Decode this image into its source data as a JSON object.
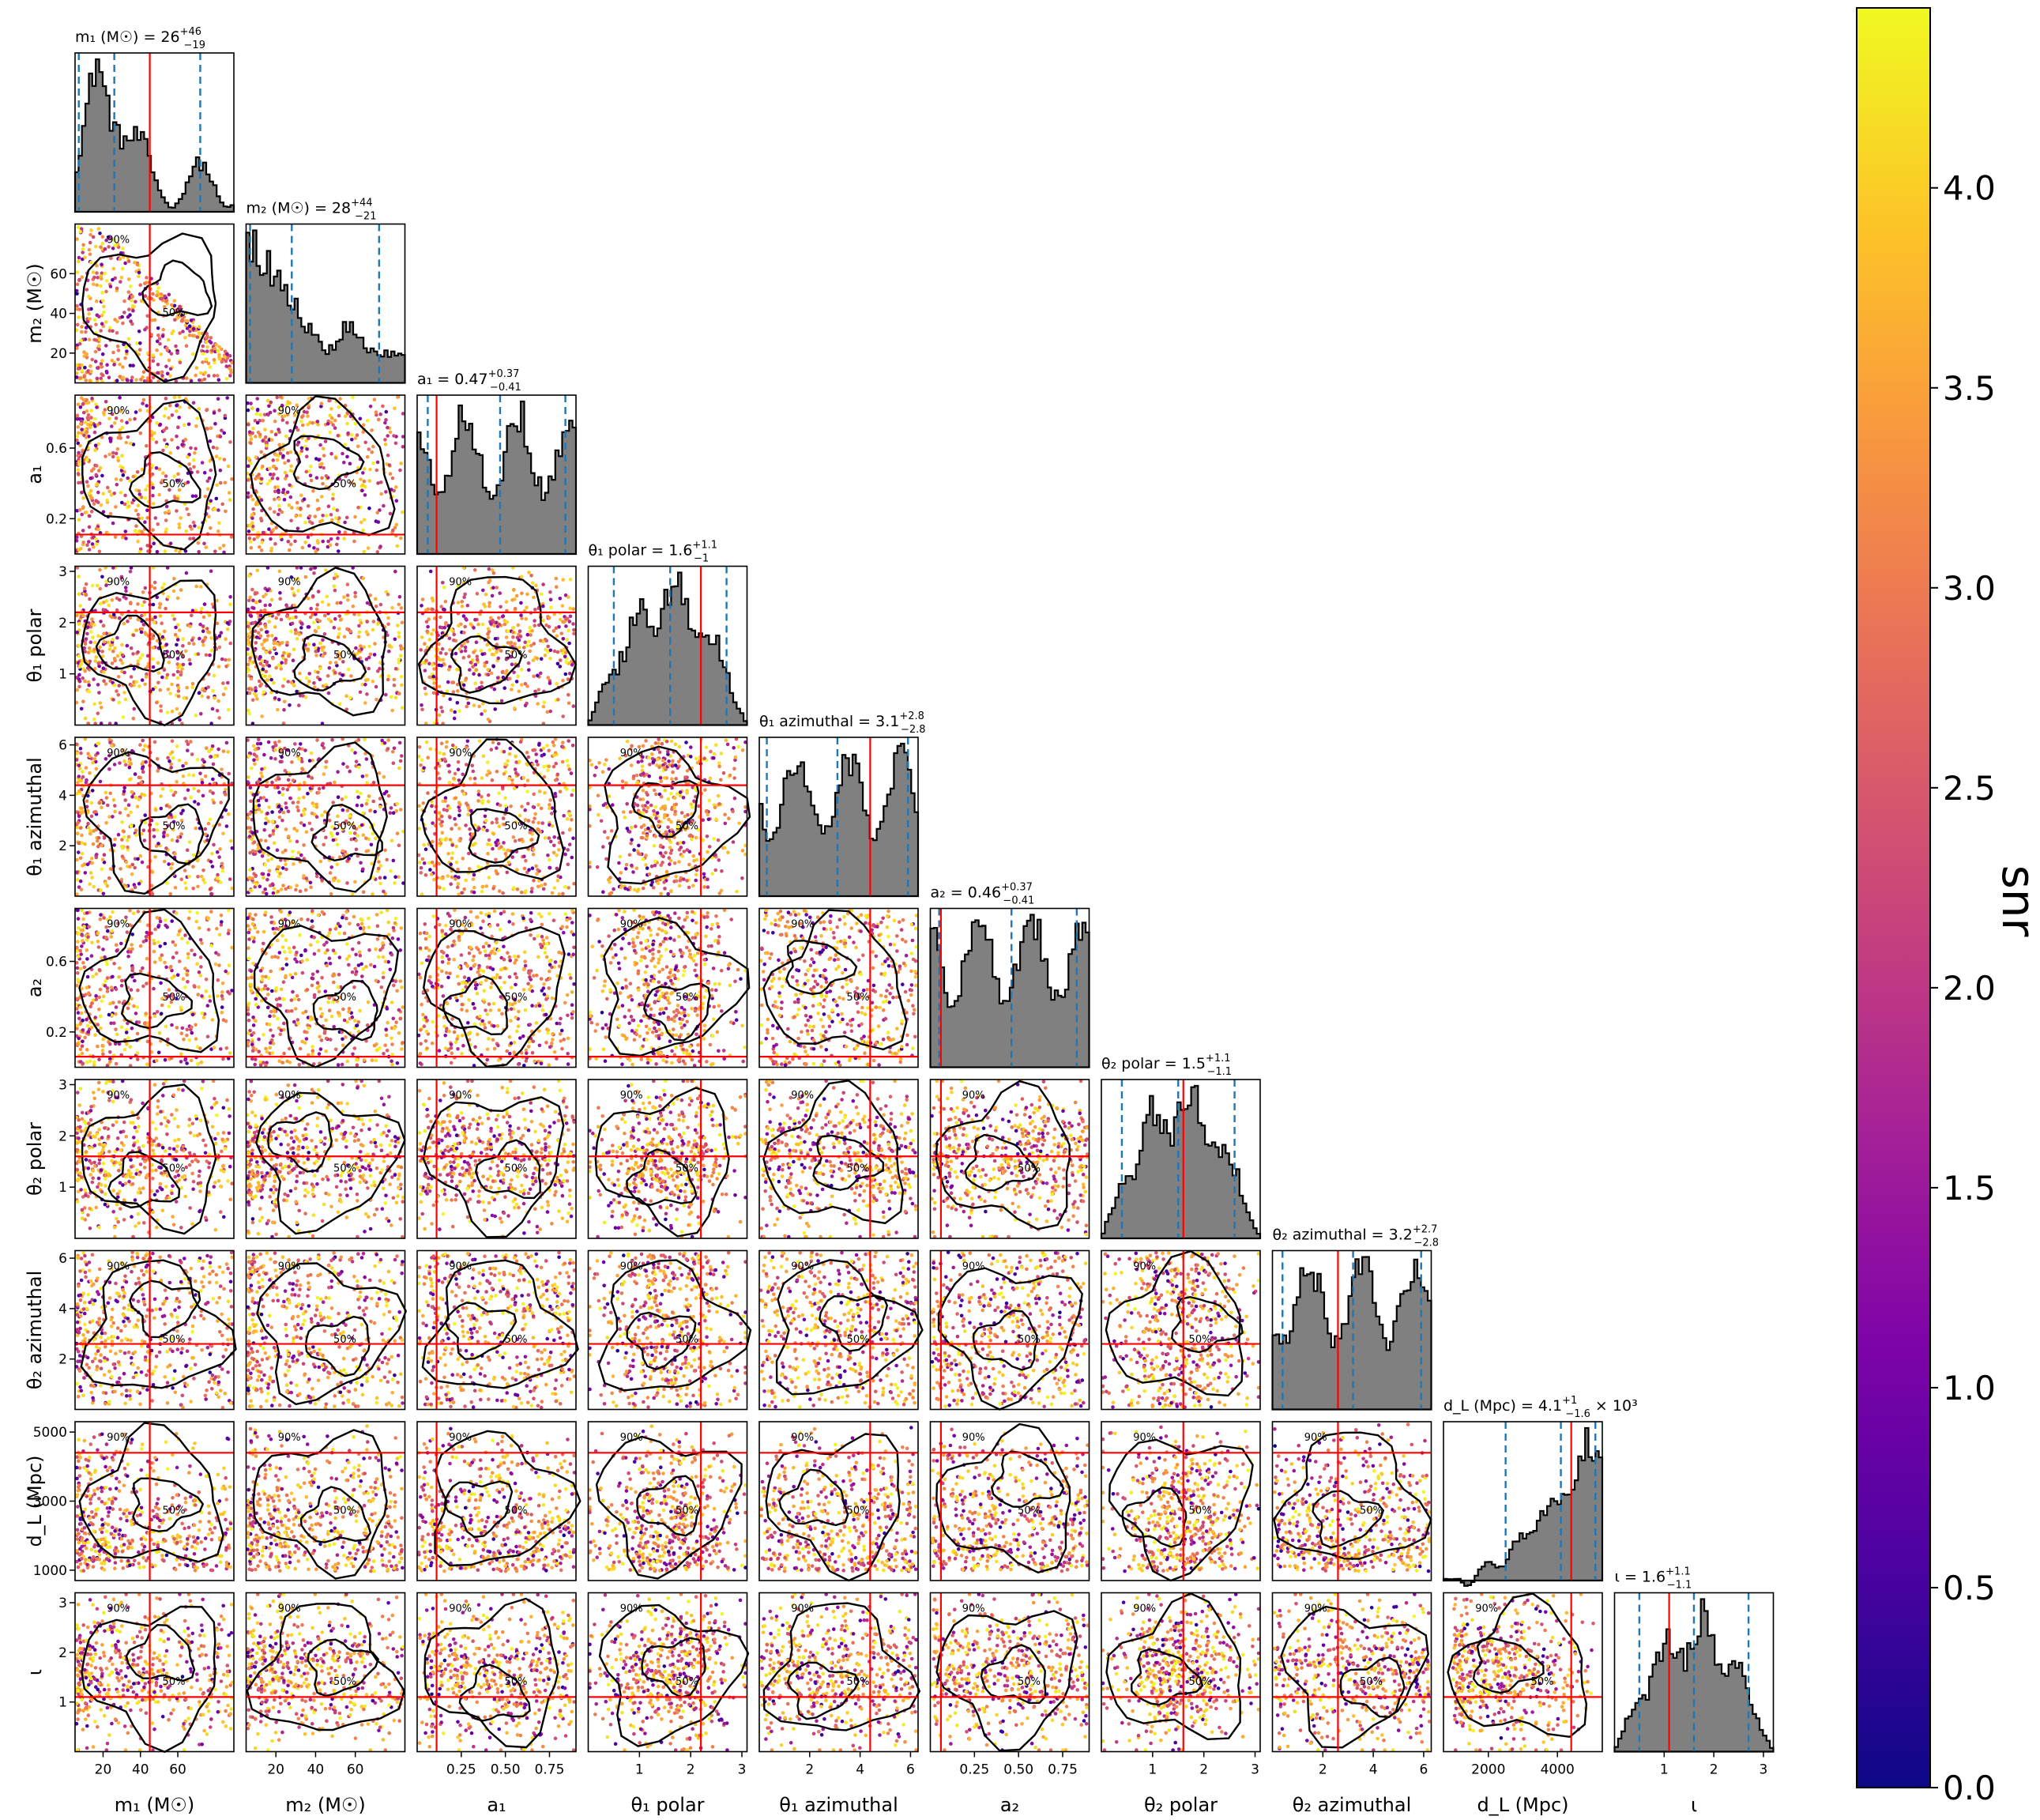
{
  "figure": {
    "colorbar_label": "snr"
  },
  "chart_data": {
    "type": "scatter",
    "subtype": "corner-plot",
    "colormap": "plasma",
    "colorbar": {
      "label": "snr",
      "range": [
        0.0,
        4.45
      ],
      "ticks": [
        "0.0",
        "0.5",
        "1.0",
        "1.5",
        "2.0",
        "2.5",
        "3.0",
        "3.5",
        "4.0"
      ],
      "tick_values": [
        0.0,
        0.5,
        1.0,
        1.5,
        2.0,
        2.5,
        3.0,
        3.5,
        4.0
      ]
    },
    "contour_levels": [
      "50%",
      "90%"
    ],
    "colors": {
      "truth_line": "#ff0000",
      "quantile_line": "#1f77b4",
      "histogram_fill": "#808080",
      "contour": "#000000"
    },
    "parameters": [
      {
        "key": "m1",
        "axis_label": "m₁ (M☉)",
        "title": "m₁ (M☉) = 26",
        "sup": "+46",
        "sub": "−19",
        "range": [
          5,
          90
        ],
        "ticks": [
          20,
          40,
          60
        ],
        "tick_labels": [
          "20",
          "40",
          "60"
        ],
        "truth": 45,
        "median": 26,
        "quantiles": [
          7,
          26,
          72
        ]
      },
      {
        "key": "m2",
        "axis_label": "m₂ (M☉)",
        "title": "m₂ (M☉) = 28",
        "sup": "+44",
        "sub": "−21",
        "range": [
          5,
          85
        ],
        "ticks": [
          20,
          40,
          60
        ],
        "tick_labels": [
          "20",
          "40",
          "60"
        ],
        "truth": null,
        "median": 28,
        "quantiles": [
          7,
          28,
          72
        ]
      },
      {
        "key": "a1",
        "axis_label": "a₁",
        "title": "a₁ = 0.47",
        "sup": "+0.37",
        "sub": "−0.41",
        "range": [
          0.0,
          0.9
        ],
        "ticks": [
          0.25,
          0.5,
          0.75
        ],
        "tick_labels": [
          "0.25",
          "0.50",
          "0.75"
        ],
        "ticks_left": [
          0.2,
          0.6
        ],
        "tick_labels_left": [
          "0.2",
          "0.6"
        ],
        "truth": 0.11,
        "median": 0.47,
        "quantiles": [
          0.06,
          0.47,
          0.84
        ]
      },
      {
        "key": "theta1_polar",
        "axis_label": "θ₁ polar",
        "title": "θ₁ polar = 1.6",
        "sup": "+1.1",
        "sub": "−1",
        "range": [
          0.0,
          3.1
        ],
        "ticks": [
          1,
          2,
          3
        ],
        "tick_labels": [
          "1",
          "2",
          "3"
        ],
        "truth": 2.2,
        "median": 1.6,
        "quantiles": [
          0.5,
          1.6,
          2.7
        ]
      },
      {
        "key": "theta1_azimuthal",
        "axis_label": "θ₁ azimuthal",
        "title": "θ₁ azimuthal = 3.1",
        "sup": "+2.8",
        "sub": "−2.8",
        "range": [
          0.0,
          6.3
        ],
        "ticks": [
          2,
          4,
          6
        ],
        "tick_labels": [
          "2",
          "4",
          "6"
        ],
        "truth": 4.4,
        "median": 3.1,
        "quantiles": [
          0.3,
          3.1,
          5.9
        ]
      },
      {
        "key": "a2",
        "axis_label": "a₂",
        "title": "a₂ = 0.46",
        "sup": "+0.37",
        "sub": "−0.41",
        "range": [
          0.0,
          0.9
        ],
        "ticks": [
          0.25,
          0.5,
          0.75
        ],
        "tick_labels": [
          "0.25",
          "0.50",
          "0.75"
        ],
        "ticks_left": [
          0.2,
          0.6
        ],
        "tick_labels_left": [
          "0.2",
          "0.6"
        ],
        "truth": 0.06,
        "median": 0.46,
        "quantiles": [
          0.05,
          0.46,
          0.83
        ]
      },
      {
        "key": "theta2_polar",
        "axis_label": "θ₂ polar",
        "title": "θ₂ polar = 1.5",
        "sup": "+1.1",
        "sub": "−1.1",
        "range": [
          0.0,
          3.1
        ],
        "ticks": [
          1,
          2,
          3
        ],
        "tick_labels": [
          "1",
          "2",
          "3"
        ],
        "truth": 1.6,
        "median": 1.5,
        "quantiles": [
          0.4,
          1.5,
          2.6
        ]
      },
      {
        "key": "theta2_azimuthal",
        "axis_label": "θ₂ azimuthal",
        "title": "θ₂ azimuthal = 3.2",
        "sup": "+2.7",
        "sub": "−2.8",
        "range": [
          0.0,
          6.3
        ],
        "ticks": [
          2,
          4,
          6
        ],
        "tick_labels": [
          "2",
          "4",
          "6"
        ],
        "truth": 2.6,
        "median": 3.2,
        "quantiles": [
          0.4,
          3.2,
          5.9
        ]
      },
      {
        "key": "dL",
        "axis_label": "d_L (Mpc)",
        "title": "d_L (Mpc) = 4.1",
        "sup": "+1",
        "sub": "−1.6",
        "suffix": " × 10³",
        "range": [
          700,
          5300
        ],
        "ticks": [
          2000,
          4000
        ],
        "tick_labels": [
          "2000",
          "4000"
        ],
        "ticks_left": [
          1000,
          3000,
          5000
        ],
        "tick_labels_left": [
          "1000",
          "3000",
          "5000"
        ],
        "truth": 4400,
        "median": 4100,
        "quantiles": [
          2500,
          4100,
          5100
        ]
      },
      {
        "key": "iota",
        "axis_label": "ι",
        "title": "ι = 1.6",
        "sup": "+1.1",
        "sub": "−1.1",
        "range": [
          0.0,
          3.2
        ],
        "ticks": [
          1,
          2,
          3
        ],
        "tick_labels": [
          "1",
          "2",
          "3"
        ],
        "truth": 1.1,
        "median": 1.6,
        "quantiles": [
          0.5,
          1.6,
          2.7
        ]
      }
    ]
  }
}
